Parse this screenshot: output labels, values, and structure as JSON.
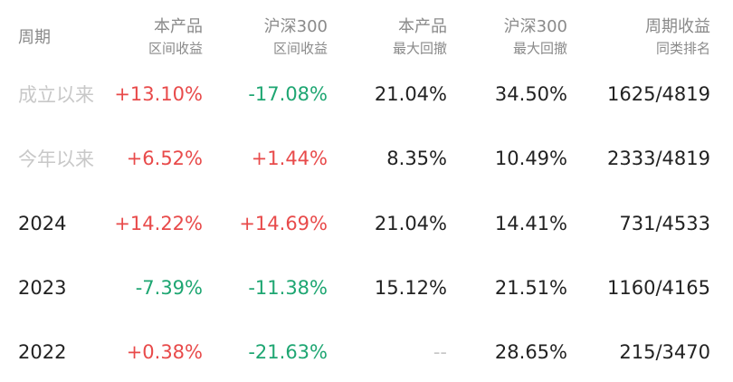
{
  "table": {
    "header": [
      [
        "周期"
      ],
      [
        "本产品",
        "区间收益"
      ],
      [
        "沪深300",
        "区间收益"
      ],
      [
        "本产品",
        "最大回撤"
      ],
      [
        "沪深300",
        "最大回撤"
      ],
      [
        "周期收益",
        "同类排名"
      ]
    ],
    "rows": [
      [
        "成立以来",
        "+13.10%",
        "-17.08%",
        "21.04%",
        "34.50%",
        "1625/4819"
      ],
      [
        "今年以来",
        "+6.52%",
        "+1.44%",
        "8.35%",
        "10.49%",
        "2333/4819"
      ],
      [
        "2024",
        "+14.22%",
        "+14.69%",
        "21.04%",
        "14.41%",
        "731/4533"
      ],
      [
        "2023",
        "-7.39%",
        "-11.38%",
        "15.12%",
        "21.51%",
        "1160/4165"
      ],
      [
        "2022",
        "+0.38%",
        "-21.63%",
        "--",
        "28.65%",
        "215/3470"
      ]
    ],
    "up_color": "#e84a4a",
    "down_color": "#1ea672"
  }
}
